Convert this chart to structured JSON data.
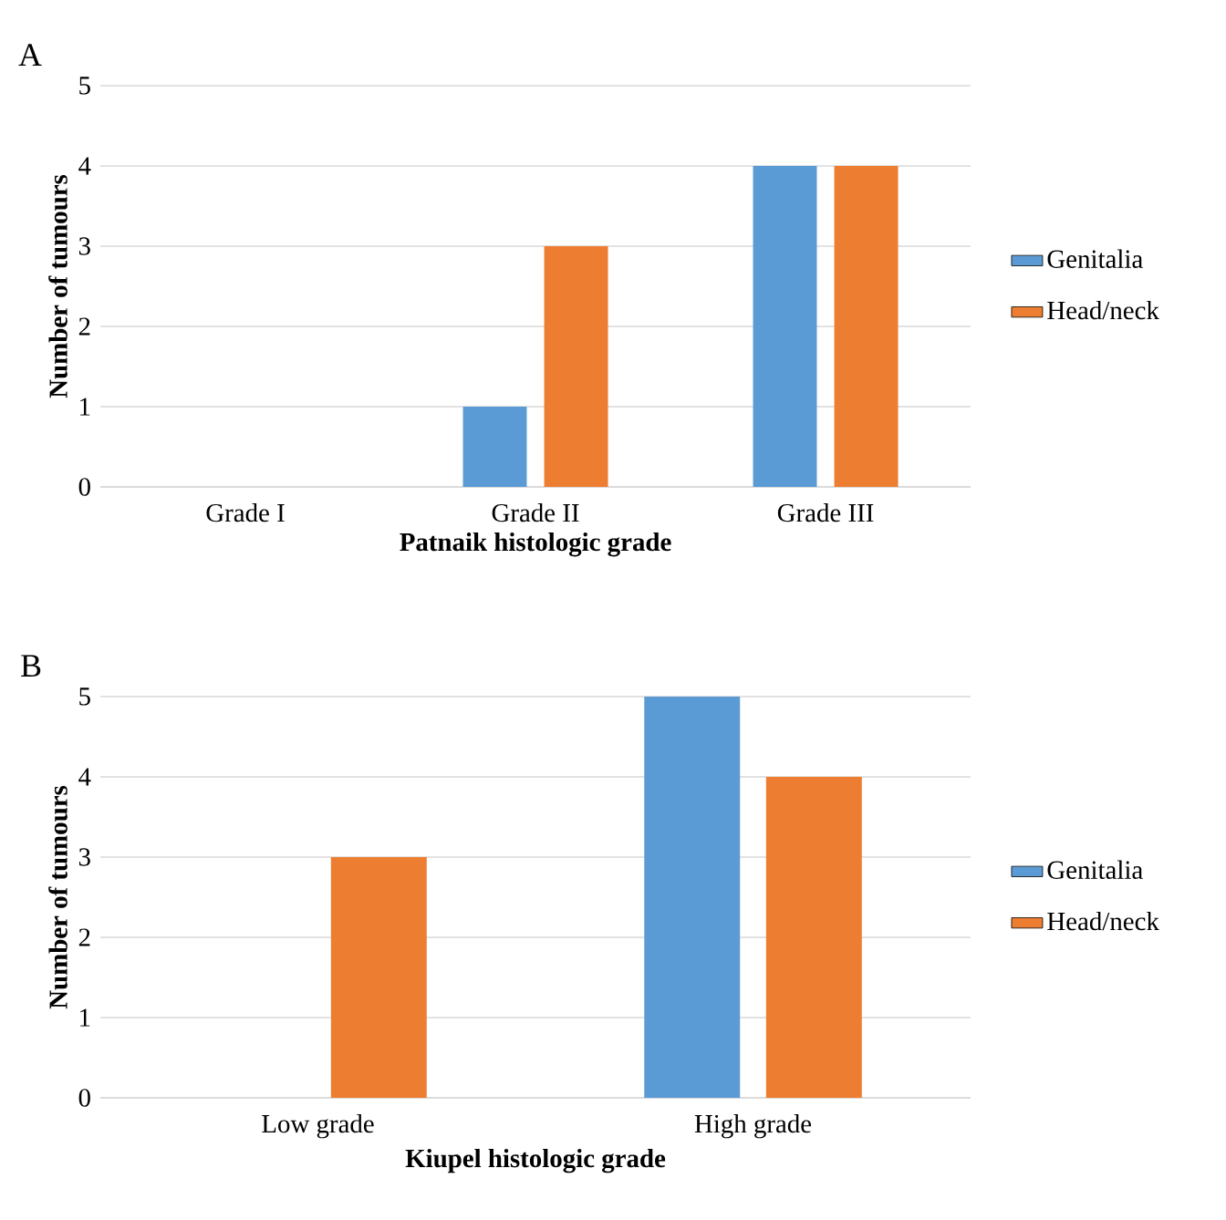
{
  "chart_data": [
    {
      "type": "bar",
      "title": "A",
      "xlabel": "Patnaik histologic grade",
      "ylabel": "Number of tumours",
      "categories": [
        "Grade I",
        "Grade II",
        "Grade III"
      ],
      "series": [
        {
          "name": "Genitalia",
          "color": "#5b9bd5",
          "values": [
            0,
            1,
            4
          ]
        },
        {
          "name": "Head/neck",
          "color": "#ed7d31",
          "values": [
            0,
            3,
            4
          ]
        }
      ],
      "ylim": [
        0,
        5
      ],
      "yticks": [
        0,
        1,
        2,
        3,
        4,
        5
      ],
      "grid": "y",
      "legend": "right"
    },
    {
      "type": "bar",
      "title": "B",
      "xlabel": "Kiupel histologic grade",
      "ylabel": "Number of tumours",
      "categories": [
        "Low grade",
        "High grade"
      ],
      "series": [
        {
          "name": "Genitalia",
          "color": "#5b9bd5",
          "values": [
            0,
            5
          ]
        },
        {
          "name": "Head/neck",
          "color": "#ed7d31",
          "values": [
            3,
            4
          ]
        }
      ],
      "ylim": [
        0,
        5
      ],
      "yticks": [
        0,
        1,
        2,
        3,
        4,
        5
      ],
      "grid": "y",
      "legend": "right"
    }
  ]
}
